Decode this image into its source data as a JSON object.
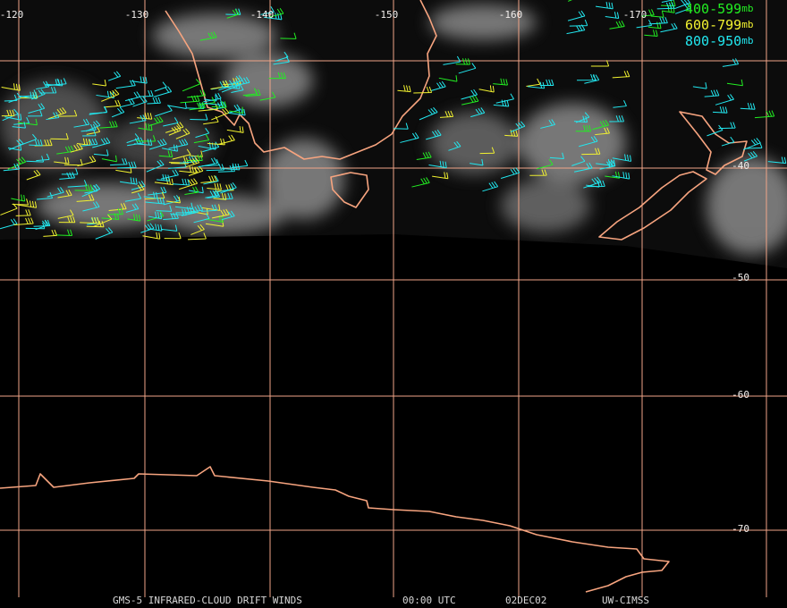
{
  "longitude_labels": [
    "-120",
    "-130",
    "-140",
    "-150",
    "-160",
    "-170"
  ],
  "latitude_labels": [
    "-40",
    "-50",
    "-60",
    "-70"
  ],
  "legend": [
    {
      "range": "400-599",
      "unit": "mb"
    },
    {
      "range": "600-799",
      "unit": "mb"
    },
    {
      "range": "800-950",
      "unit": "mb"
    }
  ],
  "footer": {
    "product": "GMS-5 INFRARED-CLOUD DRIFT WINDS",
    "time": "00:00 UTC",
    "date": "02DEC02",
    "source": "UW-CIMSS"
  }
}
